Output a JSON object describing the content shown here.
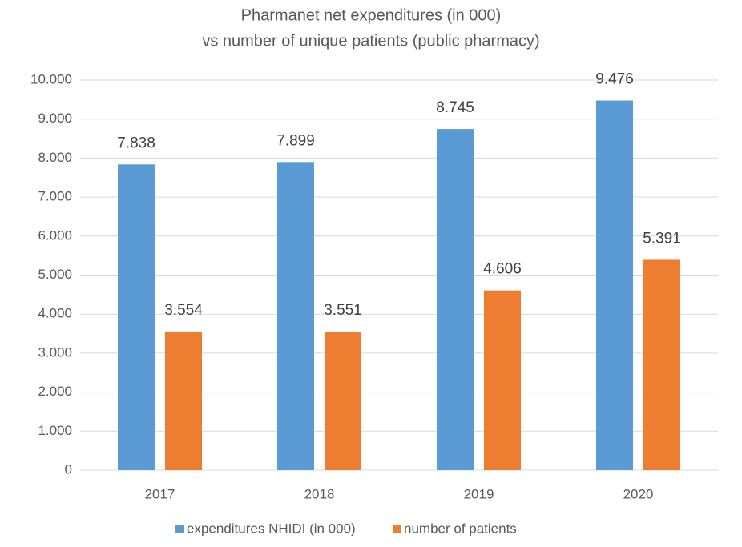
{
  "chart_data": {
    "type": "bar",
    "title": [
      "Pharmanet net expenditures (in 000)",
      "vs number of unique patients (public pharmacy)"
    ],
    "categories": [
      "2017",
      "2018",
      "2019",
      "2020"
    ],
    "series": [
      {
        "name": "expenditures NHIDI (in 000)",
        "color": "#5b9bd5",
        "values": [
          7838,
          7899,
          8745,
          9476
        ],
        "value_labels": [
          "7.838",
          "7.899",
          "8.745",
          "9.476"
        ]
      },
      {
        "name": "number of patients",
        "color": "#ed7d31",
        "values": [
          3554,
          3551,
          4606,
          5391
        ],
        "value_labels": [
          "3.554",
          "3.551",
          "4.606",
          "5.391"
        ]
      }
    ],
    "ylim": [
      0,
      10000
    ],
    "yticks": [
      0,
      {
        "value": 1000,
        "label": "1.000"
      },
      {
        "value": 2000,
        "label": "2.000"
      },
      {
        "value": 3000,
        "label": "3.000"
      },
      {
        "value": 4000,
        "label": "4.000"
      },
      {
        "value": 5000,
        "label": "5.000"
      },
      {
        "value": 6000,
        "label": "6.000"
      },
      {
        "value": 7000,
        "label": "7.000"
      },
      {
        "value": 8000,
        "label": "8.000"
      },
      {
        "value": 9000,
        "label": "9.000"
      },
      {
        "value": 10000,
        "label": "10.000"
      }
    ],
    "grid": true,
    "legend": "bottom"
  }
}
